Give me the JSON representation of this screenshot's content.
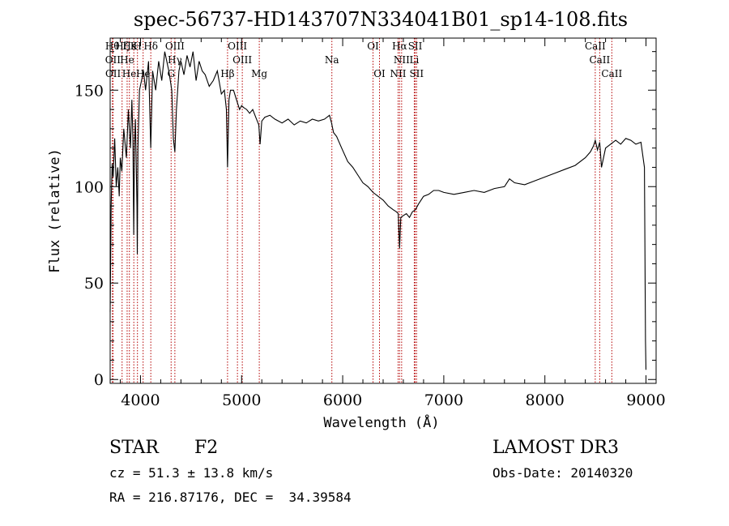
{
  "chart_data": {
    "type": "line",
    "title": "spec-56737-HD143707N334041B01_sp14-108.fits",
    "xlabel": "Wavelength (Å)",
    "ylabel": "Flux (relative)",
    "xlim": [
      3700,
      9100
    ],
    "ylim": [
      -2,
      177
    ],
    "xticks": [
      4000,
      5000,
      6000,
      7000,
      8000,
      9000
    ],
    "yticks": [
      0,
      50,
      100,
      150
    ],
    "grid": false,
    "series": [
      {
        "x": [
          3700,
          3710,
          3720,
          3730,
          3745,
          3760,
          3775,
          3790,
          3800,
          3815,
          3835,
          3860,
          3880,
          3900,
          3915,
          3925,
          3933,
          3940,
          3950,
          3965,
          3968,
          3975,
          3990,
          4010,
          4030,
          4050,
          4080,
          4101,
          4120,
          4150,
          4180,
          4210,
          4240,
          4280,
          4310,
          4325,
          4340,
          4355,
          4380,
          4400,
          4430,
          4460,
          4490,
          4520,
          4550,
          4580,
          4610,
          4640,
          4680,
          4720,
          4760,
          4800,
          4830,
          4850,
          4861,
          4875,
          4890,
          4920,
          4950,
          4980,
          5000,
          5020,
          5050,
          5080,
          5110,
          5140,
          5170,
          5183,
          5200,
          5230,
          5280,
          5330,
          5400,
          5460,
          5520,
          5580,
          5640,
          5700,
          5760,
          5820,
          5870,
          5890,
          5910,
          5940,
          5990,
          6050,
          6100,
          6150,
          6200,
          6250,
          6300,
          6350,
          6400,
          6450,
          6500,
          6530,
          6550,
          6563,
          6575,
          6600,
          6630,
          6660,
          6690,
          6720,
          6750,
          6800,
          6850,
          6900,
          6950,
          7000,
          7100,
          7200,
          7300,
          7400,
          7500,
          7600,
          7650,
          7700,
          7800,
          7900,
          8000,
          8100,
          8200,
          8300,
          8400,
          8450,
          8480,
          8498,
          8520,
          8542,
          8560,
          8600,
          8650,
          8700,
          8750,
          8800,
          8850,
          8900,
          8950,
          8985,
          8995,
          9000
        ],
        "values": [
          35,
          90,
          112,
          105,
          125,
          100,
          110,
          95,
          115,
          108,
          130,
          115,
          140,
          120,
          145,
          125,
          75,
          120,
          135,
          90,
          65,
          120,
          150,
          155,
          160,
          150,
          165,
          120,
          160,
          150,
          165,
          155,
          170,
          160,
          150,
          125,
          118,
          140,
          160,
          165,
          158,
          168,
          162,
          170,
          155,
          165,
          160,
          158,
          152,
          155,
          160,
          148,
          150,
          140,
          110,
          145,
          150,
          150,
          145,
          140,
          142,
          141,
          140,
          138,
          140,
          136,
          132,
          122,
          134,
          136,
          137,
          135,
          133,
          135,
          132,
          134,
          133,
          135,
          134,
          135,
          137,
          133,
          128,
          126,
          120,
          113,
          110,
          106,
          102,
          100,
          97,
          95,
          93,
          90,
          88,
          87,
          86,
          68,
          84,
          85,
          86,
          84,
          87,
          88,
          91,
          95,
          96,
          98,
          98,
          97,
          96,
          97,
          98,
          97,
          99,
          100,
          104,
          102,
          101,
          103,
          105,
          107,
          109,
          111,
          115,
          118,
          121,
          124,
          119,
          123,
          110,
          120,
          122,
          124,
          122,
          125,
          124,
          122,
          123,
          110,
          20,
          5
        ]
      }
    ],
    "lines": {
      "color": "#b40000",
      "top": [
        {
          "x": 3722,
          "label": "Hθ"
        },
        {
          "x": 3818,
          "label": "Hζ"
        },
        {
          "x": 3890,
          "label": "Hε"
        },
        {
          "x": 3934,
          "label": "K"
        },
        {
          "x": 3970,
          "label": "H"
        },
        {
          "x": 4102,
          "label": "Hδ"
        },
        {
          "x": 4340,
          "label": "OIII"
        },
        {
          "x": 4959,
          "label": "OIII"
        },
        {
          "x": 6300,
          "label": "OI"
        },
        {
          "x": 6563,
          "label": "Hα"
        },
        {
          "x": 6717,
          "label": "SII"
        },
        {
          "x": 8498,
          "label": "CaII"
        }
      ],
      "mid": [
        {
          "x": 3727,
          "label": "OII"
        },
        {
          "x": 3868,
          "label": "He"
        },
        {
          "x": 4340,
          "label": "Hγ"
        },
        {
          "x": 5007,
          "label": "OIII"
        },
        {
          "x": 5893,
          "label": "Na"
        },
        {
          "x": 6583,
          "label": "NII"
        },
        {
          "x": 6708,
          "label": "Li"
        },
        {
          "x": 8542,
          "label": "CaII"
        }
      ],
      "low": [
        {
          "x": 3729,
          "label": "OII"
        },
        {
          "x": 3889,
          "label": "He"
        },
        {
          "x": 4026,
          "label": "He"
        },
        {
          "x": 4303,
          "label": "G"
        },
        {
          "x": 4861,
          "label": "Hβ"
        },
        {
          "x": 5175,
          "label": "Mg"
        },
        {
          "x": 6364,
          "label": "OI"
        },
        {
          "x": 6548,
          "label": "NII"
        },
        {
          "x": 6731,
          "label": "SII"
        },
        {
          "x": 8662,
          "label": "CaII"
        }
      ]
    }
  },
  "footer": {
    "object_class": "STAR",
    "subclass": "F2",
    "cz": "cz = 51.3 ± 13.8 km/s",
    "radec": "RA = 216.87176, DEC =  34.39584",
    "survey": "LAMOST DR3",
    "obsdate": "Obs-Date: 20140320"
  }
}
